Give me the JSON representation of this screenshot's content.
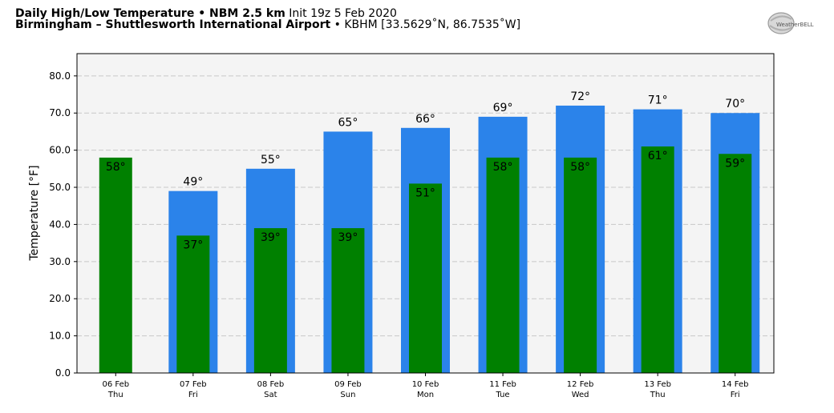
{
  "header": {
    "line1_bold": "Daily High/Low Temperature • NBM 2.5 km",
    "line1_rest": " Init 19z 5 Feb 2020",
    "line2_bold": "Birmingham – Shuttlesworth International Airport",
    "line2_rest": " • KBHM [33.5629˚N, 86.7535˚W]"
  },
  "logo": {
    "text": "WeatherBELL",
    "icon": "weatherbell-logo"
  },
  "chart_data": {
    "type": "bar",
    "title": "Daily High/Low Temperature • NBM 2.5 km",
    "ylabel": "Temperature [°F]",
    "xlabel": "",
    "ylim": [
      0,
      86
    ],
    "yticks": [
      "0.0",
      "10.0",
      "20.0",
      "30.0",
      "40.0",
      "50.0",
      "60.0",
      "70.0",
      "80.0"
    ],
    "grid": true,
    "categories": [
      "06 Feb",
      "07 Feb",
      "08 Feb",
      "09 Feb",
      "10 Feb",
      "11 Feb",
      "12 Feb",
      "13 Feb",
      "14 Feb"
    ],
    "weekdays": [
      "Thu",
      "Fri",
      "Sat",
      "Sun",
      "Mon",
      "Tue",
      "Wed",
      "Thu",
      "Fri"
    ],
    "series": [
      {
        "name": "High",
        "color": "#2b83ea",
        "values": [
          null,
          49,
          55,
          65,
          66,
          69,
          72,
          71,
          70
        ],
        "labels": [
          "",
          "49°",
          "55°",
          "65°",
          "66°",
          "69°",
          "72°",
          "71°",
          "70°"
        ]
      },
      {
        "name": "Low",
        "color": "#008000",
        "values": [
          58,
          37,
          39,
          39,
          51,
          58,
          58,
          61,
          59
        ],
        "labels": [
          "58°",
          "37°",
          "39°",
          "39°",
          "51°",
          "58°",
          "58°",
          "61°",
          "59°"
        ]
      }
    ]
  }
}
